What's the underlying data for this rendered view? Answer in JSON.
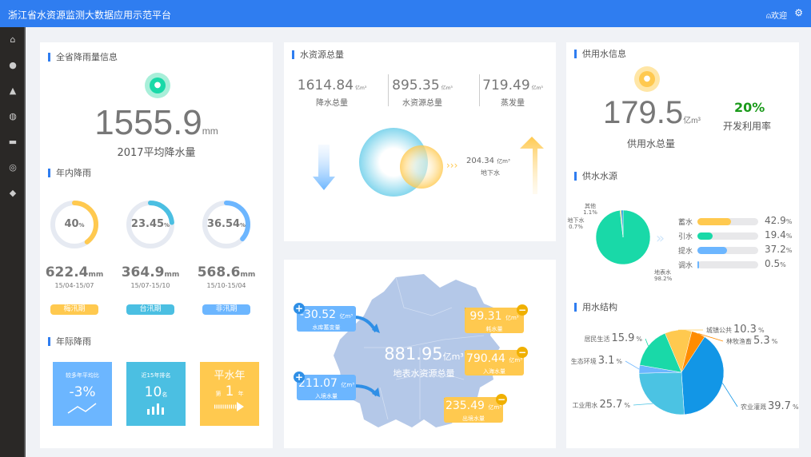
{
  "header": {
    "title": "浙江省水资源监测大数据应用示范平台",
    "user": "欢迎",
    "user_icon": "user-icon",
    "settings_icon": "gear-icon"
  },
  "sidebar": {
    "items": [
      {
        "icon": "home-icon",
        "glyph": "⌂"
      },
      {
        "icon": "water-drop-icon",
        "glyph": "●"
      },
      {
        "icon": "flask-icon",
        "glyph": "▲"
      },
      {
        "icon": "globe-icon",
        "glyph": "◍"
      },
      {
        "icon": "factory-icon",
        "glyph": "▬"
      },
      {
        "icon": "gauge-icon",
        "glyph": "◎"
      },
      {
        "icon": "export-icon",
        "glyph": "◆"
      }
    ]
  },
  "rain": {
    "title": "全省降雨量信息",
    "value": "1555.9",
    "unit": "mm",
    "label": "2017平均降水量",
    "inyear_title": "年内降雨",
    "periods": [
      {
        "pct": 40,
        "pct_text": "40",
        "value": "622.4",
        "unit": "mm",
        "range": "15/04-15/07",
        "tag": "梅汛期",
        "color": "#ffc94f"
      },
      {
        "pct": 23.45,
        "pct_text": "23.45",
        "value": "364.9",
        "unit": "mm",
        "range": "15/07-15/10",
        "tag": "台汛期",
        "color": "#4bbfe2"
      },
      {
        "pct": 36.54,
        "pct_text": "36.54",
        "value": "568.6",
        "unit": "mm",
        "range": "15/10-15/04",
        "tag": "非汛期",
        "color": "#6cb6ff"
      }
    ],
    "pct_unit": "%",
    "interyear_title": "年际降雨",
    "tiles": [
      {
        "label": "较多年平均比",
        "value": "-3%",
        "color": "#6cb6ff",
        "icon": "trend-line-icon"
      },
      {
        "label": "近15年排名",
        "value": "10",
        "unit": "名",
        "color": "#4bbfe2",
        "icon": "bar-chart-icon"
      },
      {
        "label": "平水年",
        "pre": "第",
        "value": "1",
        "unit": "年",
        "color": "#ffc94f",
        "icon": "arrow-right-icon"
      }
    ]
  },
  "resource": {
    "title": "水资源总量",
    "unit": "亿m³",
    "stats": [
      {
        "value": "1614.84",
        "label": "降水总量"
      },
      {
        "value": "895.35",
        "label": "水资源总量"
      },
      {
        "value": "719.49",
        "label": "蒸发量"
      }
    ],
    "ground": {
      "value": "204.34",
      "unit": "亿m³",
      "label": "地下水"
    }
  },
  "map": {
    "total": "881.95",
    "unit": "亿m³",
    "label": "地表水资源总量",
    "inflows": [
      {
        "value": "-30.52",
        "unit": "亿m³",
        "label": "水库蓄变量"
      },
      {
        "value": "211.07",
        "unit": "亿m³",
        "label": "入境水量"
      }
    ],
    "outflows": [
      {
        "value": "99.31",
        "unit": "亿m³",
        "label": "耗水量"
      },
      {
        "value": "790.44",
        "unit": "亿m³",
        "label": "入海水量"
      },
      {
        "value": "235.49",
        "unit": "亿m³",
        "label": "出境水量"
      }
    ],
    "plus": "+",
    "minus": "−"
  },
  "supply": {
    "title": "供用水信息",
    "value": "179.5",
    "unit": "亿m³",
    "label": "供用水总量",
    "rate": "20%",
    "rate_label": "开发利用率",
    "rate_color": "#1a9a1a",
    "source_title": "供水水源",
    "chart_data": {
      "type": "pie",
      "slices": [
        {
          "name": "地表水",
          "pct": "98.2%",
          "value": 98.2,
          "color": "#19d9a8"
        },
        {
          "name": "地下水",
          "pct": "0.7%",
          "value": 0.7,
          "color": "#ffc94f"
        },
        {
          "name": "其他",
          "pct": "1.1%",
          "value": 1.1,
          "color": "#1296e6"
        }
      ]
    },
    "bars": [
      {
        "name": "蓄水",
        "value": 42.9,
        "text": "42.9",
        "color": "#ffc94f"
      },
      {
        "name": "引水",
        "value": 19.4,
        "text": "19.4",
        "color": "#19d9a8"
      },
      {
        "name": "提水",
        "value": 37.2,
        "text": "37.2",
        "color": "#6cb6ff"
      },
      {
        "name": "调水",
        "value": 0.5,
        "text": "0.5",
        "color": "#6cb6ff"
      }
    ],
    "bar_unit": "%"
  },
  "usage": {
    "title": "用水结构",
    "chart_data": {
      "type": "pie",
      "unit": "%",
      "slices": [
        {
          "name": "城镇公共",
          "value": 10.3,
          "text": "10.3",
          "color": "#ffc94f"
        },
        {
          "name": "林牧渔畜",
          "value": 5.3,
          "text": "5.3",
          "color": "#ff8c00"
        },
        {
          "name": "农业灌溉",
          "value": 39.7,
          "text": "39.7",
          "color": "#1296e6"
        },
        {
          "name": "工业用水",
          "value": 25.7,
          "text": "25.7",
          "color": "#4bc3e3"
        },
        {
          "name": "生态环境",
          "value": 3.1,
          "text": "3.1",
          "color": "#6cb6ff"
        },
        {
          "name": "居民生活",
          "value": 15.9,
          "text": "15.9",
          "color": "#19d9a8"
        }
      ]
    }
  }
}
